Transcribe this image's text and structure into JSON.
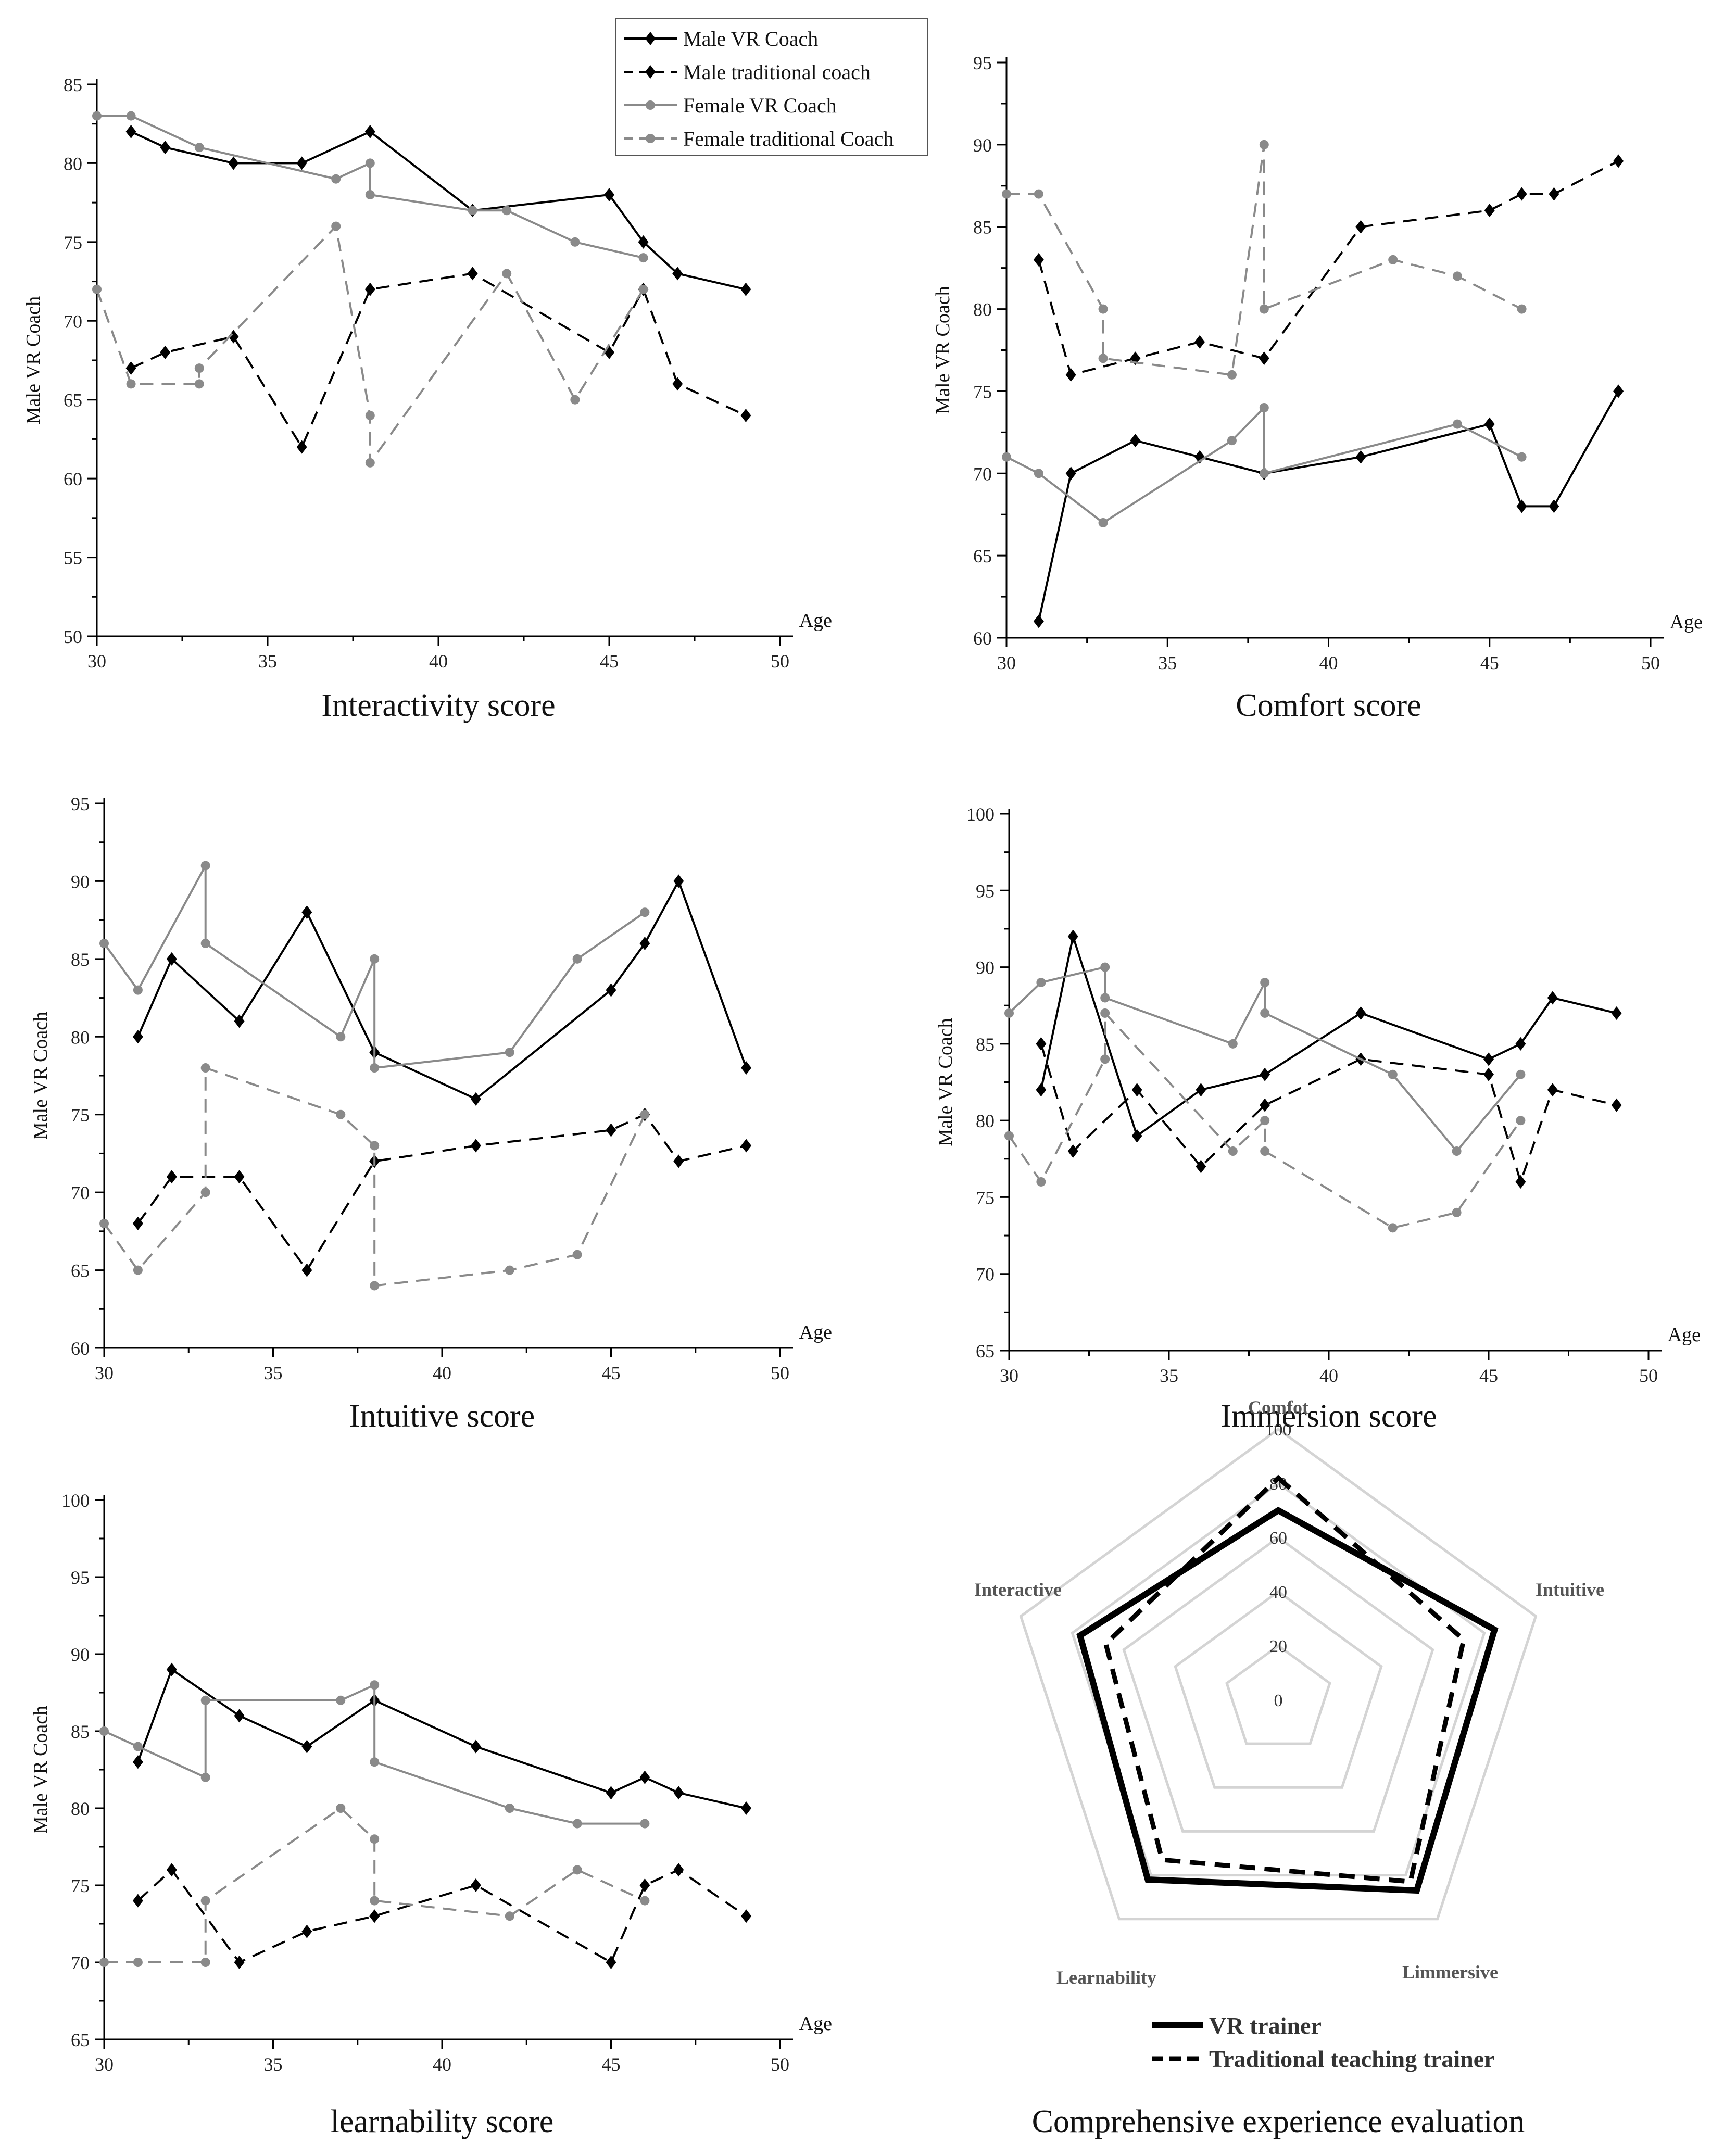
{
  "colors": {
    "black": "#000000",
    "gray": "#8a8a8a",
    "grid": "#d4d4d4"
  },
  "legend": [
    {
      "label": "Male VR Coach",
      "color": "#000000",
      "dashed": false
    },
    {
      "label": "Male traditional coach",
      "color": "#000000",
      "dashed": true
    },
    {
      "label": "Female VR Coach",
      "color": "#8a8a8a",
      "dashed": false
    },
    {
      "label": "Female traditional Coach",
      "color": "#8a8a8a",
      "dashed": true
    }
  ],
  "chart_data": [
    {
      "type": "line",
      "title": "Interactivity score",
      "xlabel": "Age",
      "ylabel": "Male VR Coach",
      "xlim": [
        30,
        50
      ],
      "xticks": [
        30,
        35,
        40,
        45,
        50
      ],
      "ylim": [
        50,
        85
      ],
      "yticks": [
        50,
        55,
        60,
        65,
        70,
        75,
        80,
        85
      ],
      "series": [
        {
          "name": "Male VR Coach",
          "points": [
            [
              31,
              82
            ],
            [
              32,
              81
            ],
            [
              34,
              80
            ],
            [
              36,
              80
            ],
            [
              38,
              82
            ],
            [
              41,
              77
            ],
            [
              45,
              78
            ],
            [
              46,
              75
            ],
            [
              47,
              73
            ],
            [
              49,
              72
            ]
          ]
        },
        {
          "name": "Male traditional coach",
          "points": [
            [
              31,
              67
            ],
            [
              32,
              68
            ],
            [
              34,
              69
            ],
            [
              36,
              62
            ],
            [
              38,
              72
            ],
            [
              41,
              73
            ],
            [
              45,
              68
            ],
            [
              46,
              72
            ],
            [
              47,
              66
            ],
            [
              49,
              64
            ]
          ]
        },
        {
          "name": "Female VR Coach",
          "points": [
            [
              30,
              83
            ],
            [
              31,
              83
            ],
            [
              33,
              81
            ],
            [
              37,
              79
            ],
            [
              38,
              80
            ],
            [
              38,
              78
            ],
            [
              41,
              77
            ],
            [
              42,
              77
            ],
            [
              44,
              75
            ],
            [
              46,
              74
            ]
          ]
        },
        {
          "name": "Female traditional Coach",
          "points": [
            [
              30,
              72
            ],
            [
              31,
              66
            ],
            [
              33,
              66
            ],
            [
              33,
              67
            ],
            [
              37,
              76
            ],
            [
              38,
              64
            ],
            [
              38,
              61
            ],
            [
              42,
              73
            ],
            [
              44,
              65
            ],
            [
              46,
              72
            ]
          ]
        }
      ]
    },
    {
      "type": "line",
      "title": "Comfort score",
      "xlabel": "Age",
      "ylabel": "Male VR Coach",
      "xlim": [
        30,
        50
      ],
      "xticks": [
        30,
        35,
        40,
        45,
        50
      ],
      "ylim": [
        60,
        95
      ],
      "yticks": [
        60,
        65,
        70,
        75,
        80,
        85,
        90,
        95
      ],
      "series": [
        {
          "name": "Male VR Coach",
          "points": [
            [
              31,
              61
            ],
            [
              32,
              70
            ],
            [
              34,
              72
            ],
            [
              36,
              71
            ],
            [
              38,
              70
            ],
            [
              41,
              71
            ],
            [
              45,
              73
            ],
            [
              46,
              68
            ],
            [
              47,
              68
            ],
            [
              49,
              75
            ]
          ]
        },
        {
          "name": "Male traditional coach",
          "points": [
            [
              31,
              83
            ],
            [
              32,
              76
            ],
            [
              34,
              77
            ],
            [
              36,
              78
            ],
            [
              38,
              77
            ],
            [
              41,
              85
            ],
            [
              45,
              86
            ],
            [
              46,
              87
            ],
            [
              47,
              87
            ],
            [
              49,
              89
            ]
          ]
        },
        {
          "name": "Female VR Coach",
          "points": [
            [
              30,
              71
            ],
            [
              31,
              70
            ],
            [
              33,
              67
            ],
            [
              37,
              72
            ],
            [
              38,
              74
            ],
            [
              38,
              70
            ],
            [
              44,
              73
            ],
            [
              46,
              71
            ]
          ]
        },
        {
          "name": "Female traditional Coach",
          "points": [
            [
              30,
              87
            ],
            [
              31,
              87
            ],
            [
              33,
              80
            ],
            [
              33,
              77
            ],
            [
              37,
              76
            ],
            [
              38,
              90
            ],
            [
              38,
              80
            ],
            [
              42,
              83
            ],
            [
              44,
              82
            ],
            [
              46,
              80
            ]
          ]
        }
      ]
    },
    {
      "type": "line",
      "title": "Intuitive score",
      "xlabel": "Age",
      "ylabel": "Male VR Coach",
      "xlim": [
        30,
        50
      ],
      "xticks": [
        30,
        35,
        40,
        45,
        50
      ],
      "ylim": [
        60,
        95
      ],
      "yticks": [
        60,
        65,
        70,
        75,
        80,
        85,
        90,
        95
      ],
      "series": [
        {
          "name": "Male VR Coach",
          "points": [
            [
              31,
              80
            ],
            [
              32,
              85
            ],
            [
              34,
              81
            ],
            [
              36,
              88
            ],
            [
              38,
              79
            ],
            [
              41,
              76
            ],
            [
              45,
              83
            ],
            [
              46,
              86
            ],
            [
              47,
              90
            ],
            [
              49,
              78
            ]
          ]
        },
        {
          "name": "Male traditional coach",
          "points": [
            [
              31,
              68
            ],
            [
              32,
              71
            ],
            [
              34,
              71
            ],
            [
              36,
              65
            ],
            [
              38,
              72
            ],
            [
              41,
              73
            ],
            [
              45,
              74
            ],
            [
              46,
              75
            ],
            [
              47,
              72
            ],
            [
              49,
              73
            ]
          ]
        },
        {
          "name": "Female VR Coach",
          "points": [
            [
              30,
              86
            ],
            [
              31,
              83
            ],
            [
              33,
              91
            ],
            [
              33,
              86
            ],
            [
              37,
              80
            ],
            [
              38,
              85
            ],
            [
              38,
              78
            ],
            [
              42,
              79
            ],
            [
              44,
              85
            ],
            [
              46,
              88
            ]
          ]
        },
        {
          "name": "Female traditional Coach",
          "points": [
            [
              30,
              68
            ],
            [
              31,
              65
            ],
            [
              33,
              70
            ],
            [
              33,
              78
            ],
            [
              37,
              75
            ],
            [
              38,
              73
            ],
            [
              38,
              64
            ],
            [
              42,
              65
            ],
            [
              44,
              66
            ],
            [
              46,
              75
            ]
          ]
        }
      ]
    },
    {
      "type": "line",
      "title": "Immersion score",
      "xlabel": "Age",
      "ylabel": "Male VR Coach",
      "xlim": [
        30,
        50
      ],
      "xticks": [
        30,
        35,
        40,
        45,
        50
      ],
      "ylim": [
        65,
        100
      ],
      "yticks": [
        65,
        70,
        75,
        80,
        85,
        90,
        95,
        100
      ],
      "series": [
        {
          "name": "Male VR Coach",
          "points": [
            [
              31,
              82
            ],
            [
              32,
              92
            ],
            [
              34,
              79
            ],
            [
              36,
              82
            ],
            [
              38,
              83
            ],
            [
              41,
              87
            ],
            [
              45,
              84
            ],
            [
              46,
              85
            ],
            [
              47,
              88
            ],
            [
              49,
              87
            ]
          ]
        },
        {
          "name": "Male traditional coach",
          "points": [
            [
              31,
              85
            ],
            [
              32,
              78
            ],
            [
              34,
              82
            ],
            [
              36,
              77
            ],
            [
              38,
              81
            ],
            [
              41,
              84
            ],
            [
              45,
              83
            ],
            [
              46,
              76
            ],
            [
              47,
              82
            ],
            [
              49,
              81
            ]
          ]
        },
        {
          "name": "Female VR Coach",
          "points": [
            [
              30,
              87
            ],
            [
              31,
              89
            ],
            [
              33,
              90
            ],
            [
              33,
              88
            ],
            [
              37,
              85
            ],
            [
              38,
              89
            ],
            [
              38,
              87
            ],
            [
              42,
              83
            ],
            [
              44,
              78
            ],
            [
              46,
              83
            ]
          ]
        },
        {
          "name": "Female traditional Coach",
          "points": [
            [
              30,
              79
            ],
            [
              31,
              76
            ],
            [
              33,
              84
            ],
            [
              33,
              87
            ],
            [
              37,
              78
            ],
            [
              38,
              80
            ],
            [
              38,
              78
            ],
            [
              42,
              73
            ],
            [
              44,
              74
            ],
            [
              46,
              80
            ]
          ]
        }
      ]
    },
    {
      "type": "line",
      "title": "learnability score",
      "xlabel": "Age",
      "ylabel": "Male VR Coach",
      "xlim": [
        30,
        50
      ],
      "xticks": [
        30,
        35,
        40,
        45,
        50
      ],
      "ylim": [
        65,
        100
      ],
      "yticks": [
        65,
        70,
        75,
        80,
        85,
        90,
        95,
        100
      ],
      "series": [
        {
          "name": "Male VR Coach",
          "points": [
            [
              31,
              83
            ],
            [
              32,
              89
            ],
            [
              34,
              86
            ],
            [
              36,
              84
            ],
            [
              38,
              87
            ],
            [
              41,
              84
            ],
            [
              45,
              81
            ],
            [
              46,
              82
            ],
            [
              47,
              81
            ],
            [
              49,
              80
            ]
          ]
        },
        {
          "name": "Male traditional coach",
          "points": [
            [
              31,
              74
            ],
            [
              32,
              76
            ],
            [
              34,
              70
            ],
            [
              36,
              72
            ],
            [
              38,
              73
            ],
            [
              41,
              75
            ],
            [
              45,
              70
            ],
            [
              46,
              75
            ],
            [
              47,
              76
            ],
            [
              49,
              73
            ]
          ]
        },
        {
          "name": "Female VR Coach",
          "points": [
            [
              30,
              85
            ],
            [
              31,
              84
            ],
            [
              33,
              82
            ],
            [
              33,
              87
            ],
            [
              37,
              87
            ],
            [
              38,
              88
            ],
            [
              38,
              83
            ],
            [
              42,
              80
            ],
            [
              44,
              79
            ],
            [
              46,
              79
            ]
          ]
        },
        {
          "name": "Female traditional Coach",
          "points": [
            [
              30,
              70
            ],
            [
              31,
              70
            ],
            [
              33,
              70
            ],
            [
              33,
              74
            ],
            [
              37,
              80
            ],
            [
              38,
              78
            ],
            [
              38,
              74
            ],
            [
              42,
              73
            ],
            [
              44,
              76
            ],
            [
              46,
              74
            ]
          ]
        }
      ]
    },
    {
      "type": "radar",
      "title": "Comprehensive experience evaluation",
      "axes": [
        "Comfot",
        "Intuitive",
        "Limmersive",
        "Learnability",
        "Interactive"
      ],
      "rmax": 100,
      "ticks": [
        0,
        20,
        40,
        60,
        80,
        100
      ],
      "series": [
        {
          "name": "VR trainer",
          "dashed": false,
          "values": [
            70,
            84,
            87,
            82,
            77
          ]
        },
        {
          "name": "Traditional teaching trainer",
          "dashed": true,
          "values": [
            82,
            72,
            83,
            73,
            67
          ]
        }
      ]
    }
  ]
}
